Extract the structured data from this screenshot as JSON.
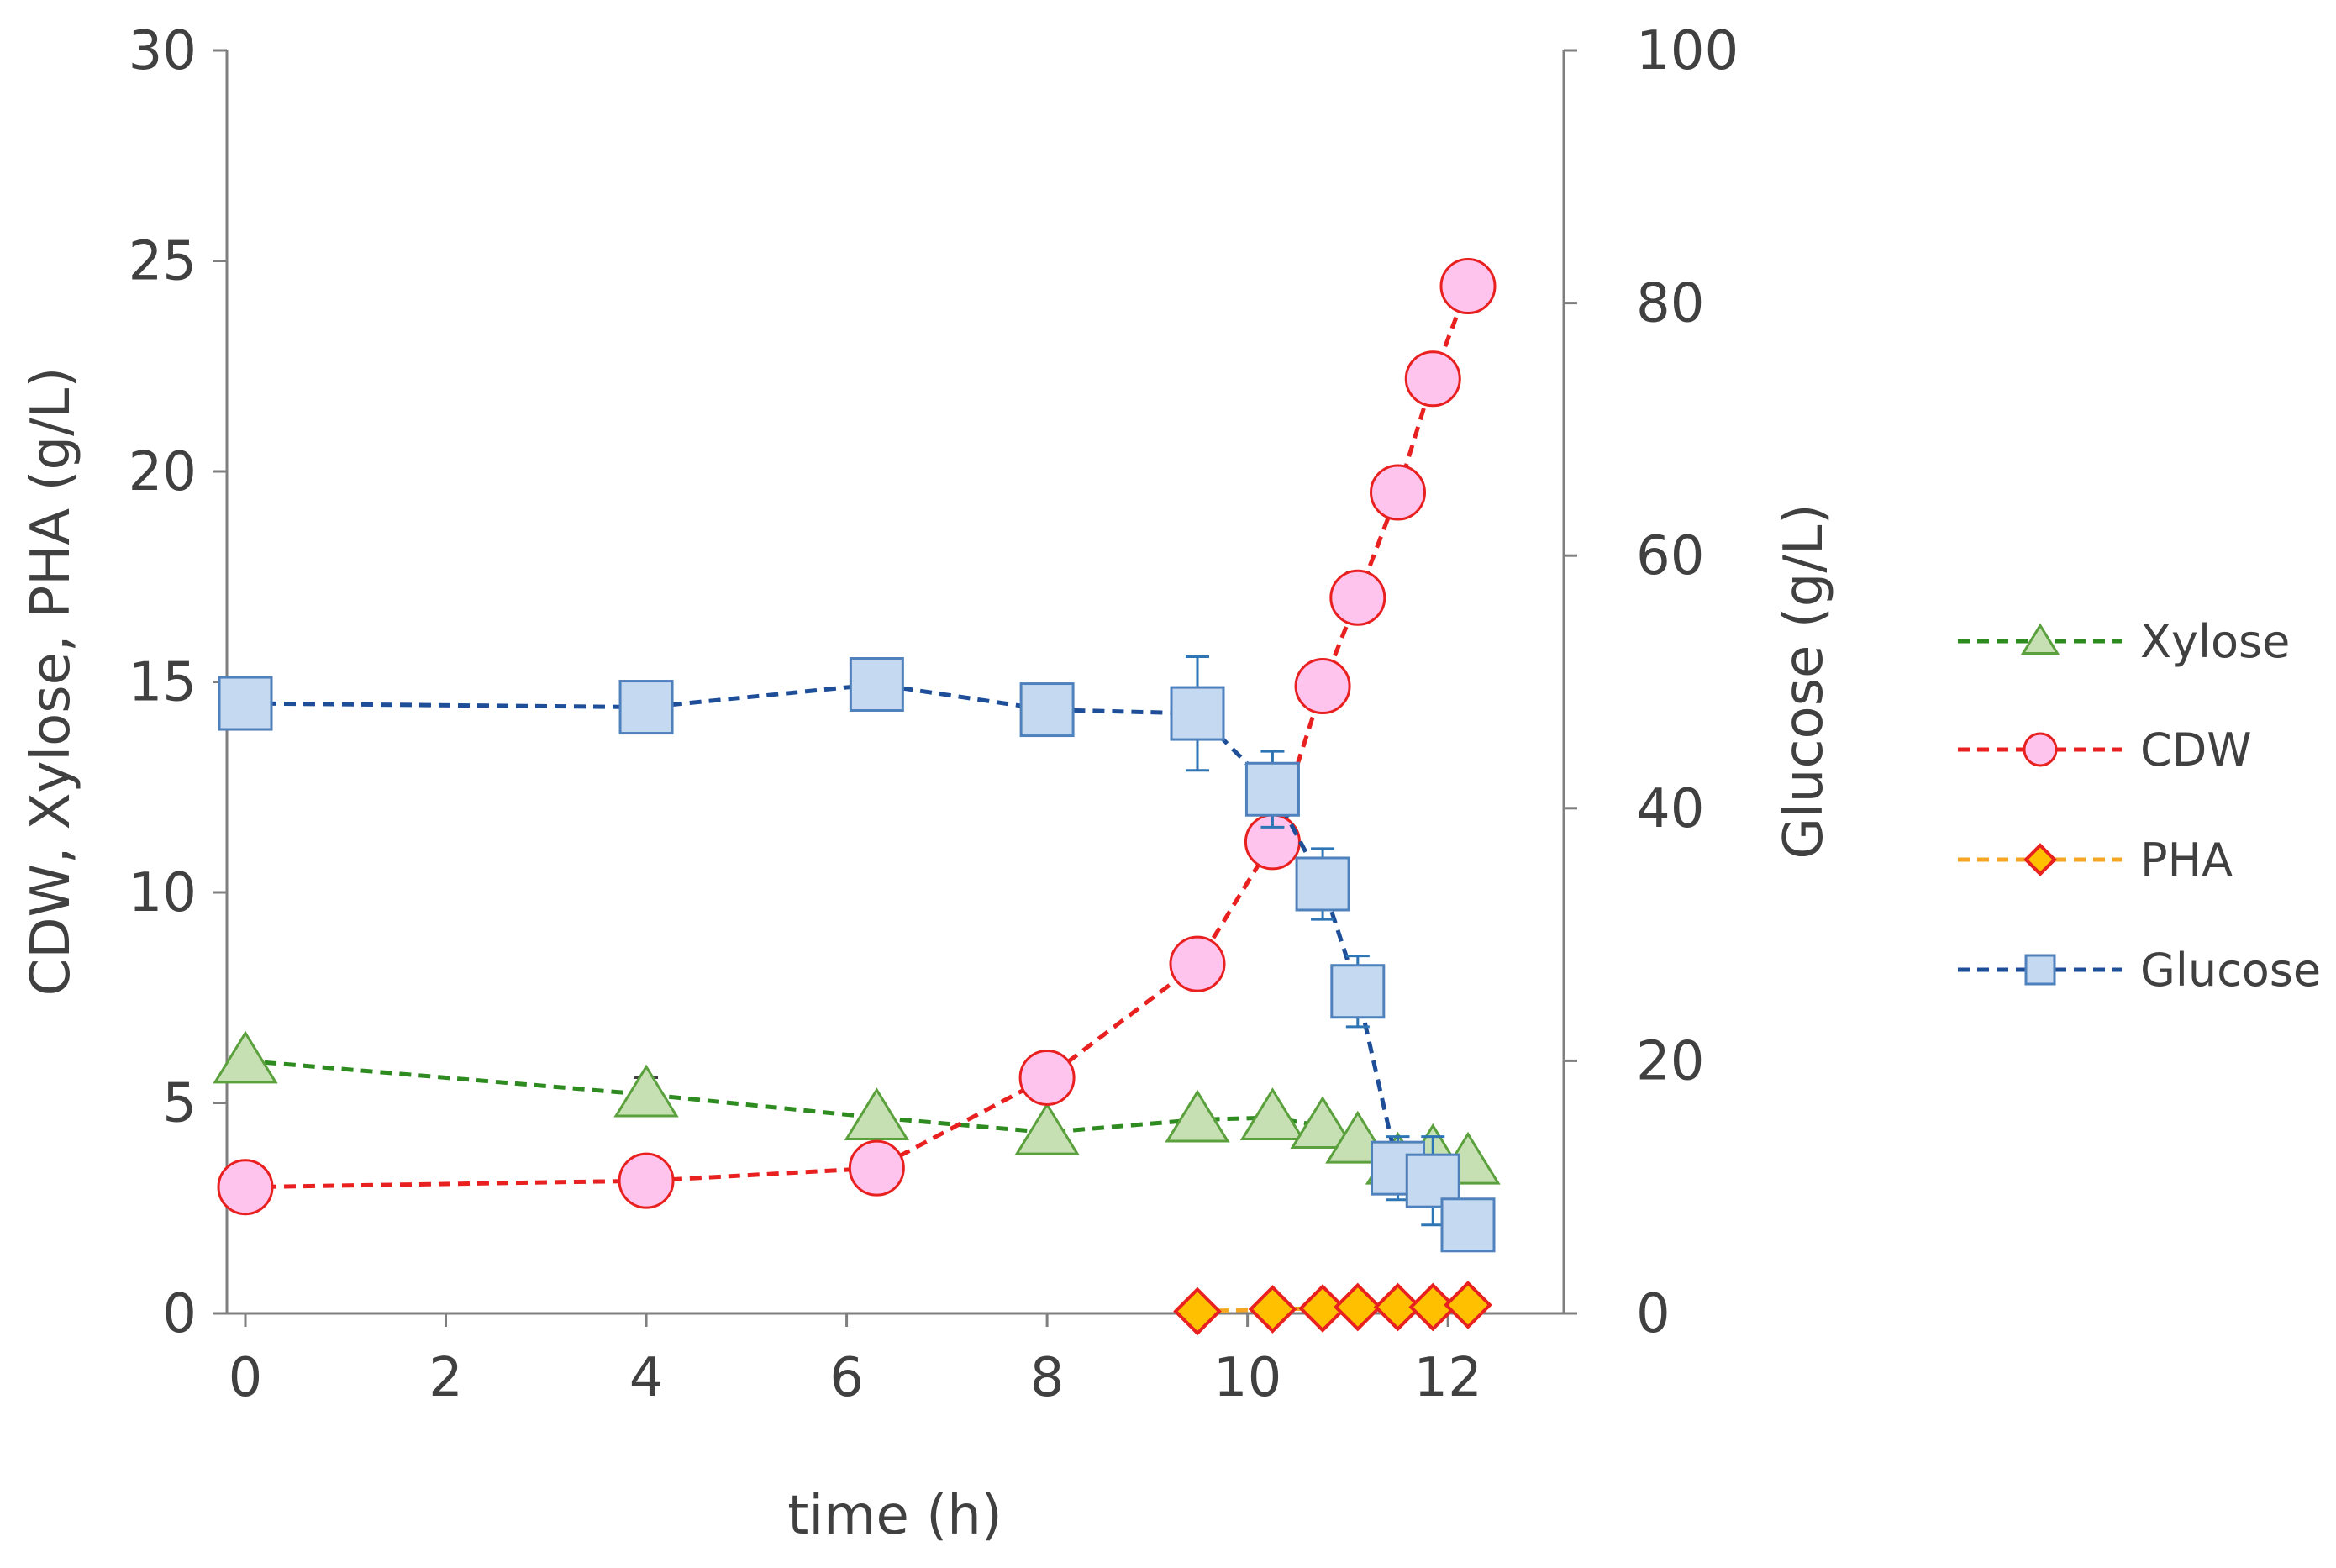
{
  "chart_data": {
    "type": "line",
    "title": "",
    "xlabel": "time (h)",
    "ylabel": "CDW, Xylose, PHA (g/L)",
    "y2label": "Glucose (g/L)",
    "xlim": [
      0,
      13
    ],
    "ylim": [
      0,
      30
    ],
    "y2lim": [
      0,
      100
    ],
    "xticks": [
      0,
      2,
      4,
      6,
      8,
      10,
      12
    ],
    "yticks": [
      0,
      5,
      10,
      15,
      20,
      25,
      30
    ],
    "y2ticks": [
      0,
      20,
      40,
      60,
      80,
      100
    ],
    "grid": false,
    "legend_position": "right",
    "series": [
      {
        "name": "Xylose",
        "axis": "left",
        "marker": "triangle",
        "line_color": "#2e8b1f",
        "fill": "#c6e0b4",
        "stroke": "#5aa03c",
        "x": [
          0,
          4,
          6.3,
          8,
          9.5,
          10.25,
          10.75,
          11.1,
          11.5,
          11.85,
          12.2
        ],
        "y": [
          6.0,
          5.2,
          4.65,
          4.3,
          4.6,
          4.65,
          4.45,
          4.1,
          3.6,
          3.8,
          3.6
        ],
        "err": [
          0,
          0.4,
          0,
          0,
          0,
          0,
          0,
          0,
          0,
          0,
          0
        ]
      },
      {
        "name": "CDW",
        "axis": "left",
        "marker": "circle",
        "line_color": "#e8201f",
        "fill": "#ffc4ee",
        "stroke": "#e8201f",
        "x": [
          0,
          4,
          6.3,
          8,
          9.5,
          10.25,
          10.75,
          11.1,
          11.5,
          11.85,
          12.2
        ],
        "y": [
          3.0,
          3.15,
          3.45,
          5.6,
          8.3,
          11.2,
          14.9,
          17.0,
          19.5,
          22.2,
          24.4
        ],
        "err": [
          0.5,
          0,
          0,
          0,
          0.4,
          0.3,
          0,
          0.6,
          0,
          0,
          0
        ]
      },
      {
        "name": "PHA",
        "axis": "left",
        "marker": "diamond",
        "line_color": "#f5a623",
        "fill": "#ffc000",
        "stroke": "#e8201f",
        "x": [
          9.5,
          10.25,
          10.75,
          11.1,
          11.5,
          11.85,
          12.2
        ],
        "y": [
          0.05,
          0.1,
          0.12,
          0.15,
          0.15,
          0.15,
          0.2
        ],
        "err": [
          0,
          0,
          0,
          0,
          0,
          0,
          0
        ]
      },
      {
        "name": "Glucose",
        "axis": "right",
        "marker": "square",
        "line_color": "#1f4e99",
        "fill": "#c5d9f1",
        "stroke": "#4f81bd",
        "x": [
          0,
          4,
          6.3,
          8,
          9.5,
          10.25,
          10.75,
          11.1,
          11.5,
          11.85,
          12.2
        ],
        "y": [
          48.3,
          48.0,
          49.8,
          47.8,
          47.5,
          41.5,
          34.0,
          25.5,
          11.5,
          10.5,
          7.0
        ],
        "err": [
          1.5,
          0,
          0,
          0,
          4.5,
          3.0,
          2.8,
          2.8,
          2.5,
          3.5,
          0
        ]
      }
    ]
  }
}
